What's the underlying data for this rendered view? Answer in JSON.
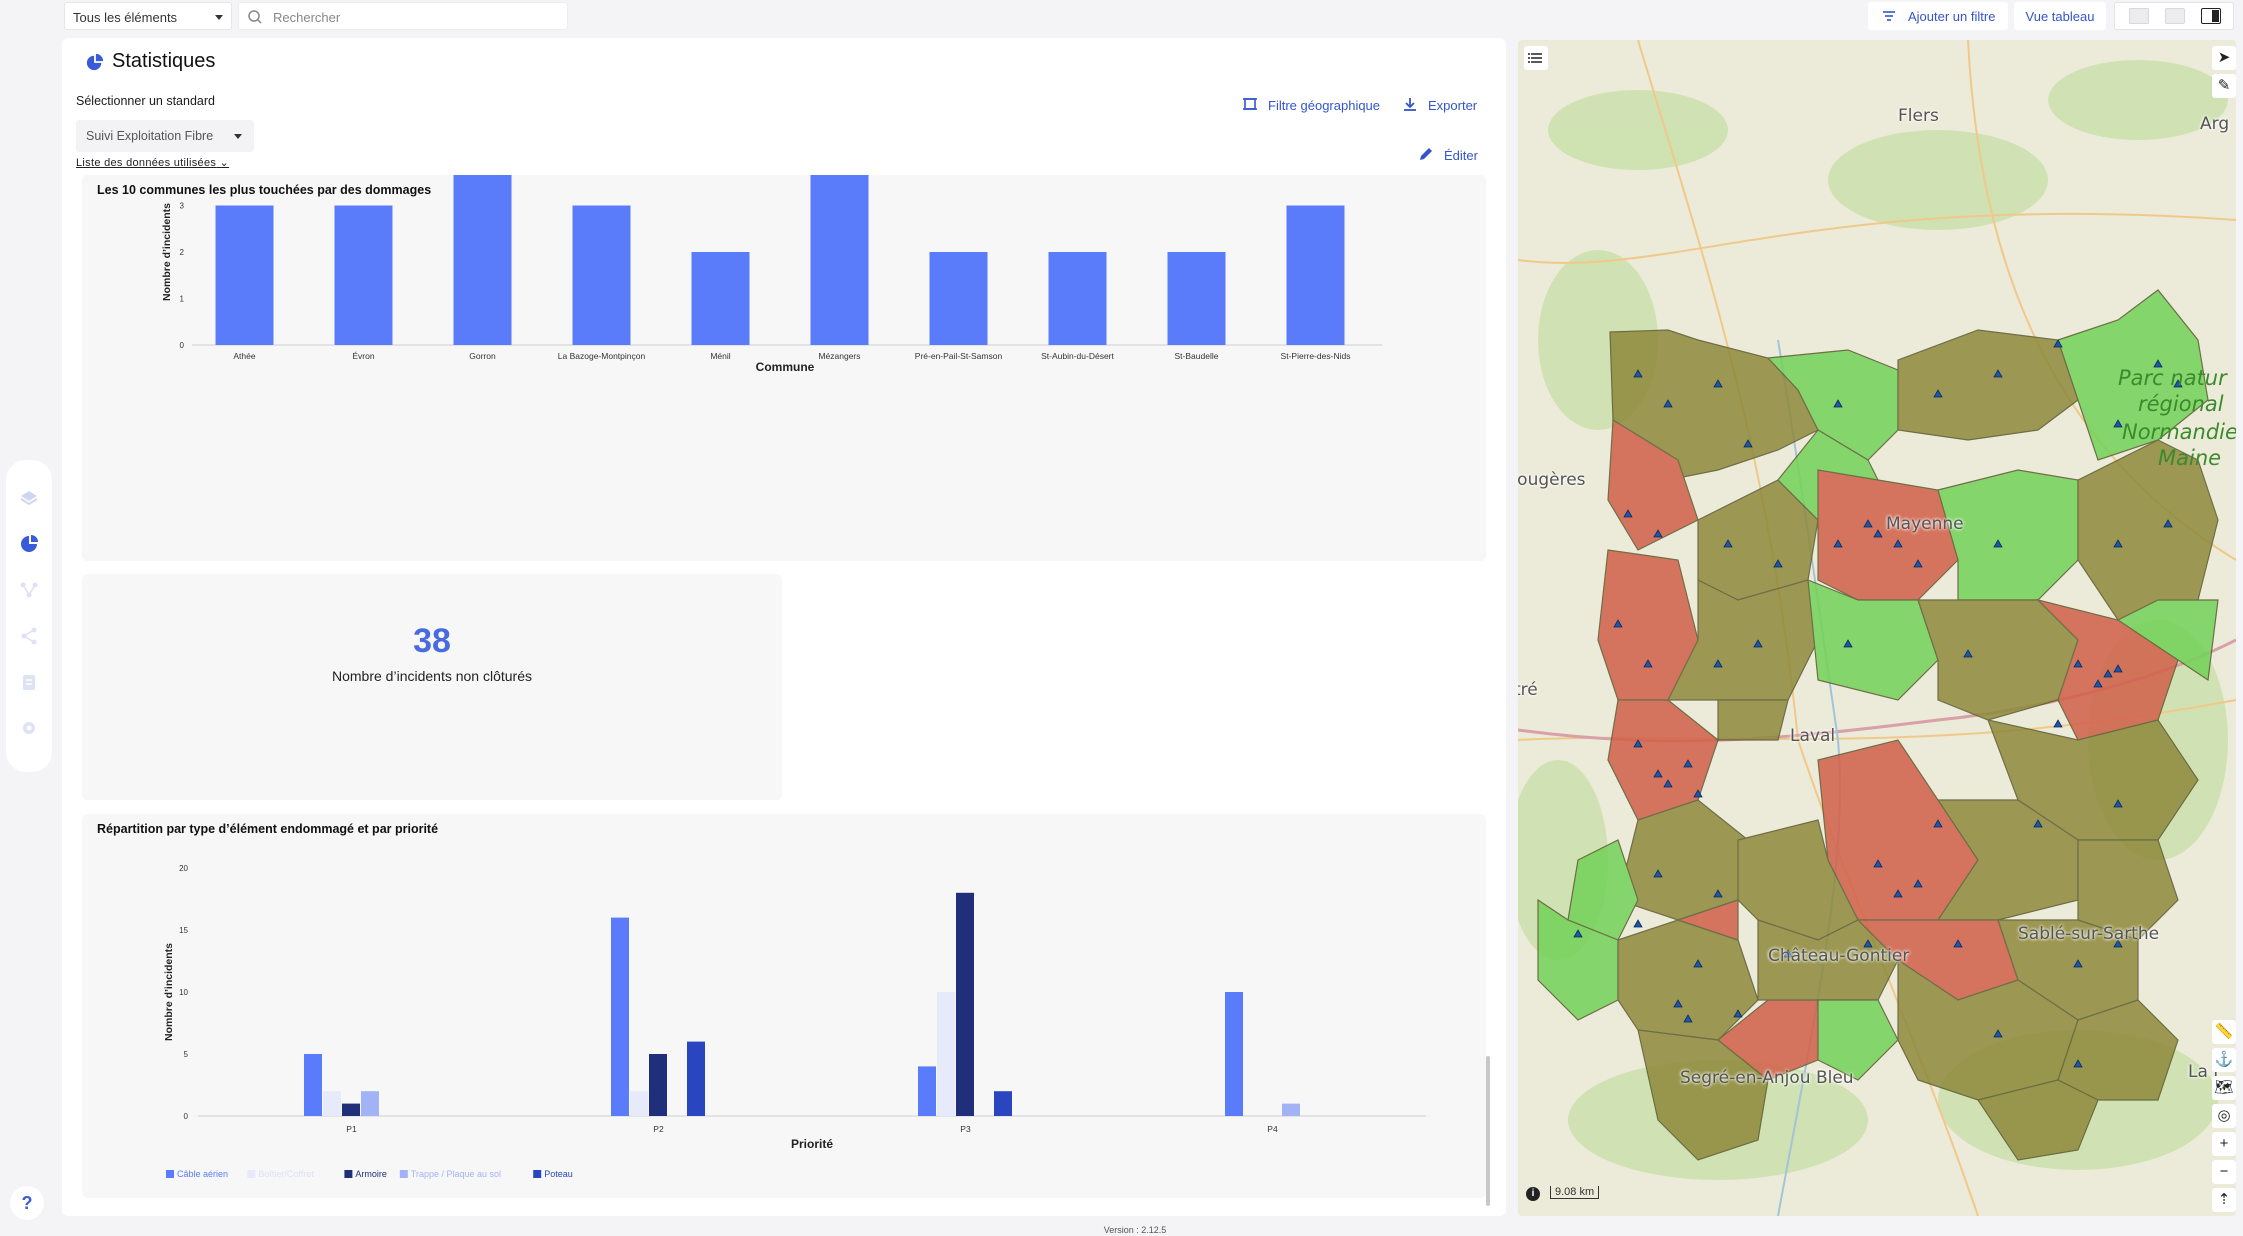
{
  "topbar": {
    "scope_select": "Tous les éléments",
    "search_placeholder": "Rechercher",
    "add_filter": "Ajouter un filtre",
    "table_view": "Vue tableau"
  },
  "panel": {
    "title": "Statistiques",
    "select_label": "Sélectionner un standard",
    "standard_value": "Suivi Exploitation Fibre",
    "data_list": "Liste des données utilisées",
    "geo_filter": "Filtre géographique",
    "export": "Exporter",
    "edit": "Éditer",
    "version": "Version : 2.12.5"
  },
  "kpi": {
    "value": "38",
    "label": "Nombre d’incidents non clôturés"
  },
  "chart_data": [
    {
      "type": "bar",
      "title": "Les 10 communes les plus touchées par des dommages",
      "xlabel": "Commune",
      "ylabel": "Nombre d’incidents",
      "categories": [
        "Athée",
        "Évron",
        "Gorron",
        "La Bazoge-Montpinçon",
        "Ménil",
        "Mézangers",
        "Pré-en-Pail-St-Samson",
        "St-Aubin-du-Désert",
        "St-Baudelle",
        "St-Pierre-des-Nids"
      ],
      "values": [
        3,
        3,
        4,
        3,
        2,
        4,
        2,
        2,
        2,
        3
      ],
      "ylim": [
        0,
        4
      ],
      "yticks": [
        0,
        1,
        2,
        3,
        4
      ],
      "color": "#5b7cfa"
    },
    {
      "type": "bar",
      "title": "Répartition par type d’élément endommagé et par priorité",
      "xlabel": "Priorité",
      "ylabel": "Nombre d’incidents",
      "categories": [
        "P1",
        "P2",
        "P3",
        "P4"
      ],
      "ylim": [
        0,
        20
      ],
      "yticks": [
        0,
        5,
        10,
        15,
        20
      ],
      "legend_position": "bottom-left",
      "series": [
        {
          "name": "Câble aérien",
          "color": "#5b7cfa",
          "values": [
            5,
            16,
            4,
            10
          ]
        },
        {
          "name": "Boîtier/Coffret",
          "color": "#e6eafb",
          "values": [
            2,
            2,
            10,
            0
          ]
        },
        {
          "name": "Armoire",
          "color": "#1f2f7a",
          "values": [
            1,
            5,
            18,
            0
          ]
        },
        {
          "name": "Trappe / Plaque au sol",
          "color": "#a2b3f5",
          "values": [
            2,
            0,
            0,
            1
          ]
        },
        {
          "name": "Poteau",
          "color": "#2a45c0",
          "values": [
            0,
            6,
            2,
            0
          ]
        }
      ]
    }
  ],
  "map": {
    "labels": [
      "Flers",
      "Fougères",
      "Vitré",
      "Laval",
      "Château-Gontier",
      "Sablé-sur-Sarthe",
      "Segré-en-Anjou Bleu",
      "Arg",
      "La F",
      "Mayenne"
    ],
    "park_label": [
      "Parc natur",
      "régional",
      "Normandie",
      "Maine"
    ],
    "scale": "9.08 km",
    "colors": {
      "high": "#d2614a",
      "medium": "#8f8a3c",
      "low": "#74d259"
    }
  }
}
